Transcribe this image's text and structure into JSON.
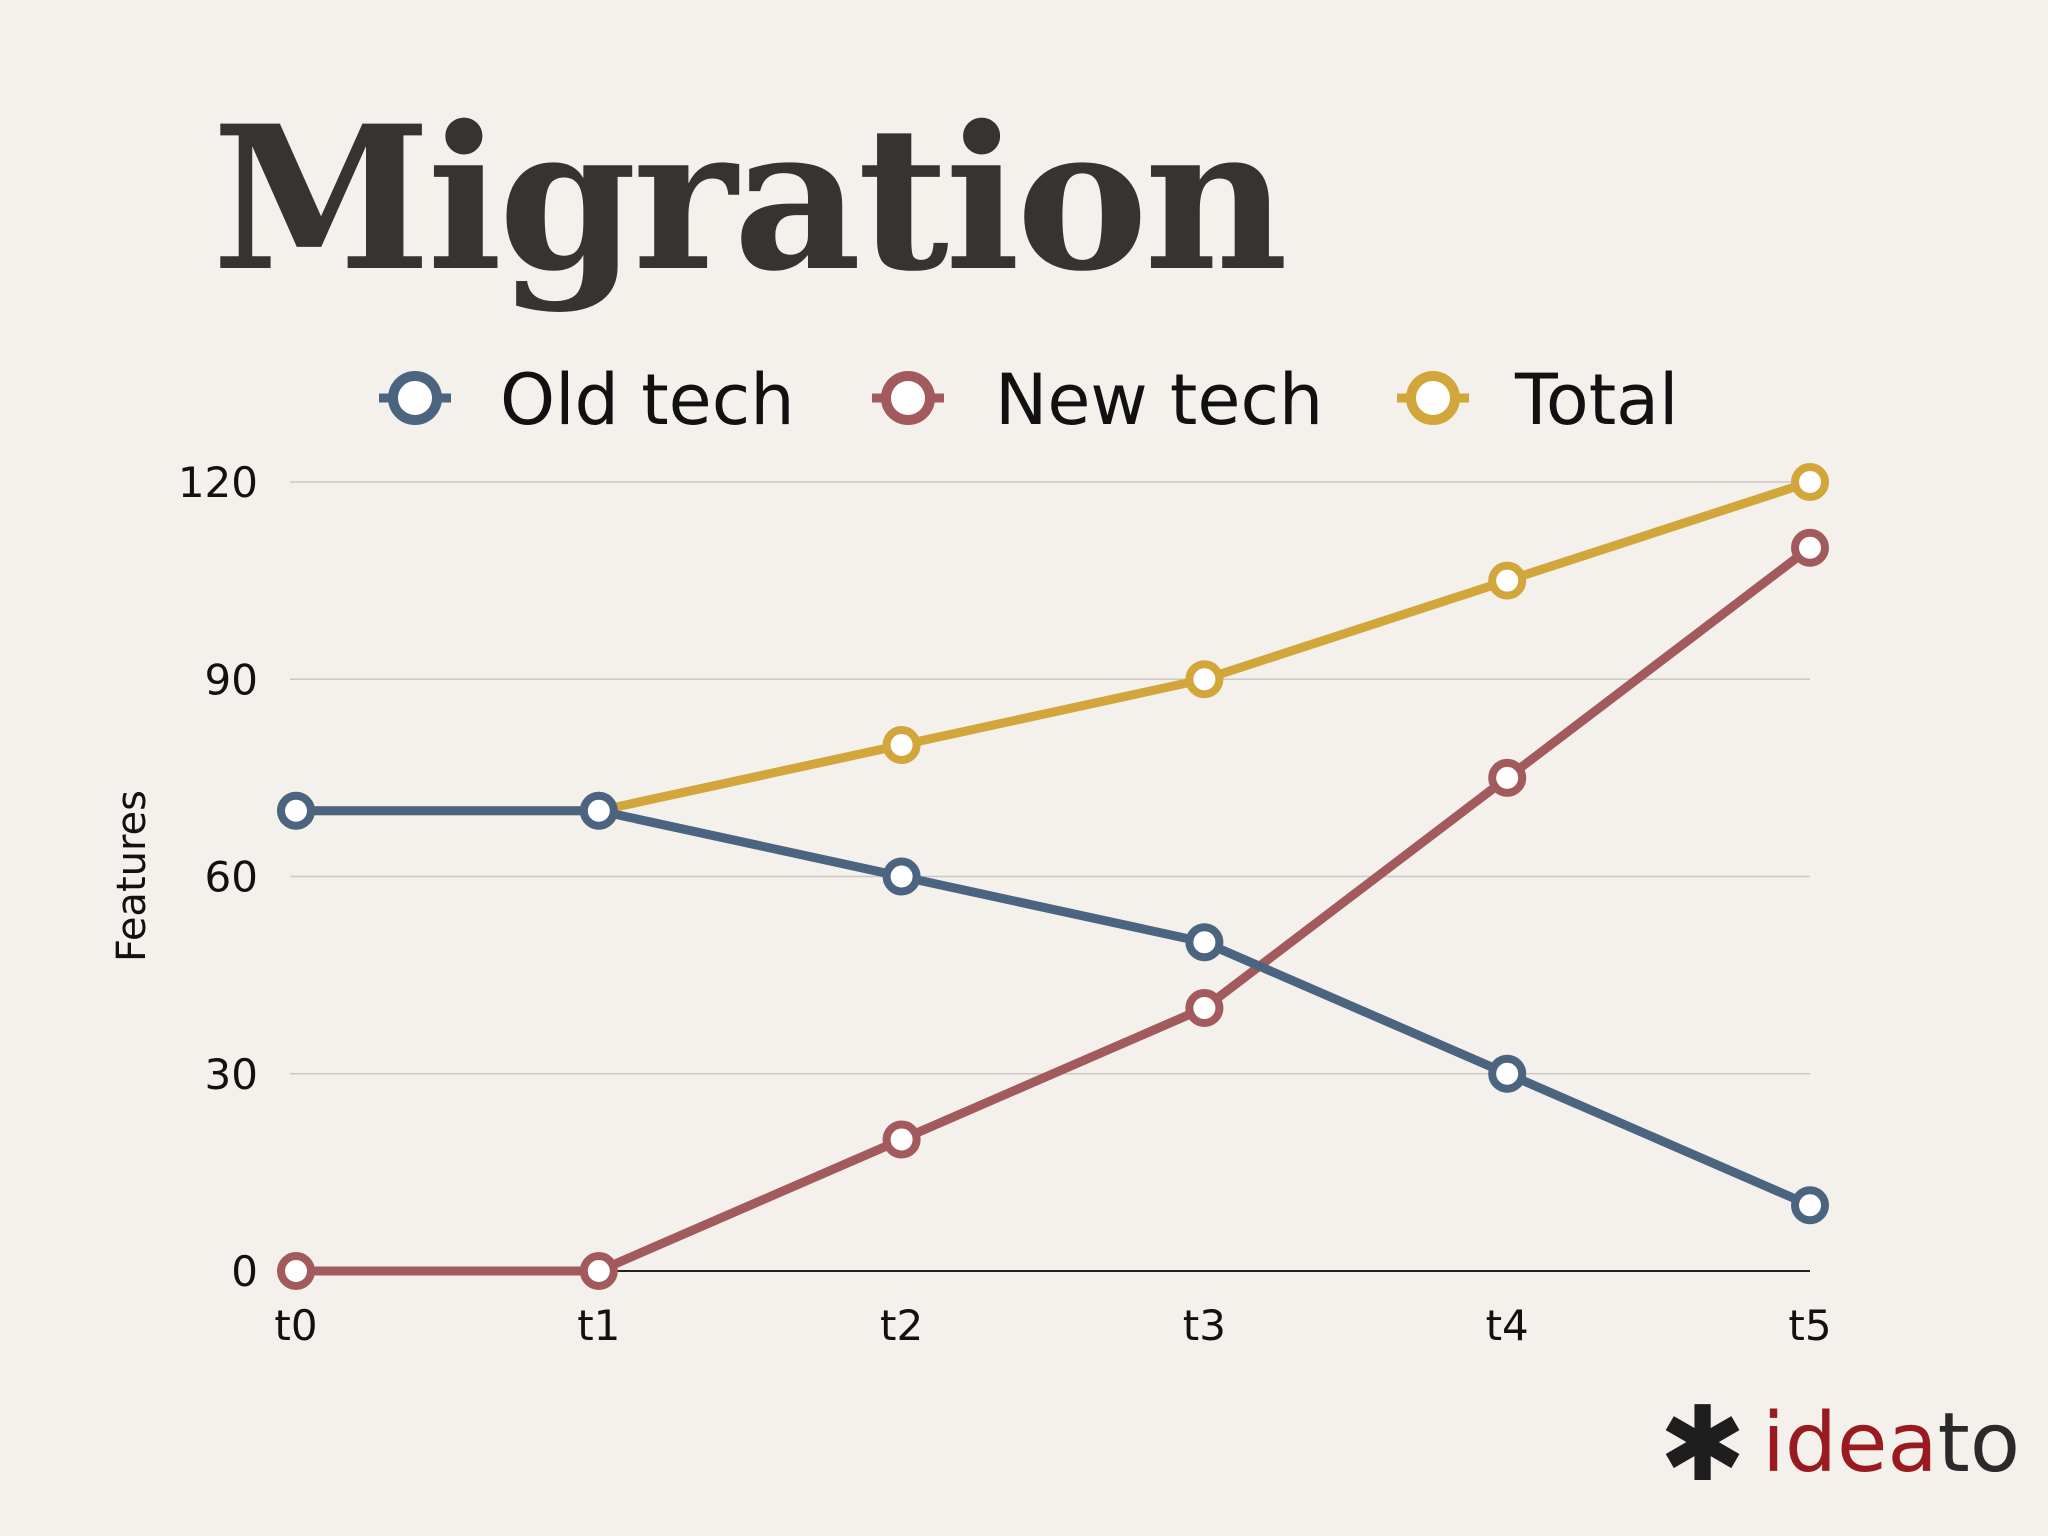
{
  "slide": {
    "title": "Migration",
    "brand": {
      "mark": "✱",
      "accent_text": "idea",
      "rest_text": "to",
      "accent_color": "#9a1b1f"
    }
  },
  "chart_data": {
    "type": "line",
    "categories": [
      "t0",
      "t1",
      "t2",
      "t3",
      "t4",
      "t5"
    ],
    "series": [
      {
        "name": "Old tech",
        "color": "#4b6580",
        "values": [
          70,
          70,
          60,
          50,
          30,
          10
        ]
      },
      {
        "name": "New tech",
        "color": "#a35a5c",
        "values": [
          0,
          0,
          20,
          40,
          75,
          110
        ]
      },
      {
        "name": "Total",
        "color": "#d2a63a",
        "values": [
          70,
          70,
          80,
          90,
          105,
          120
        ]
      }
    ],
    "title": "Migration",
    "xlabel": "",
    "ylabel": "Features",
    "ylim": [
      0,
      120
    ],
    "yticks": [
      0,
      30,
      60,
      90,
      120
    ],
    "grid": true,
    "legend": "top"
  }
}
